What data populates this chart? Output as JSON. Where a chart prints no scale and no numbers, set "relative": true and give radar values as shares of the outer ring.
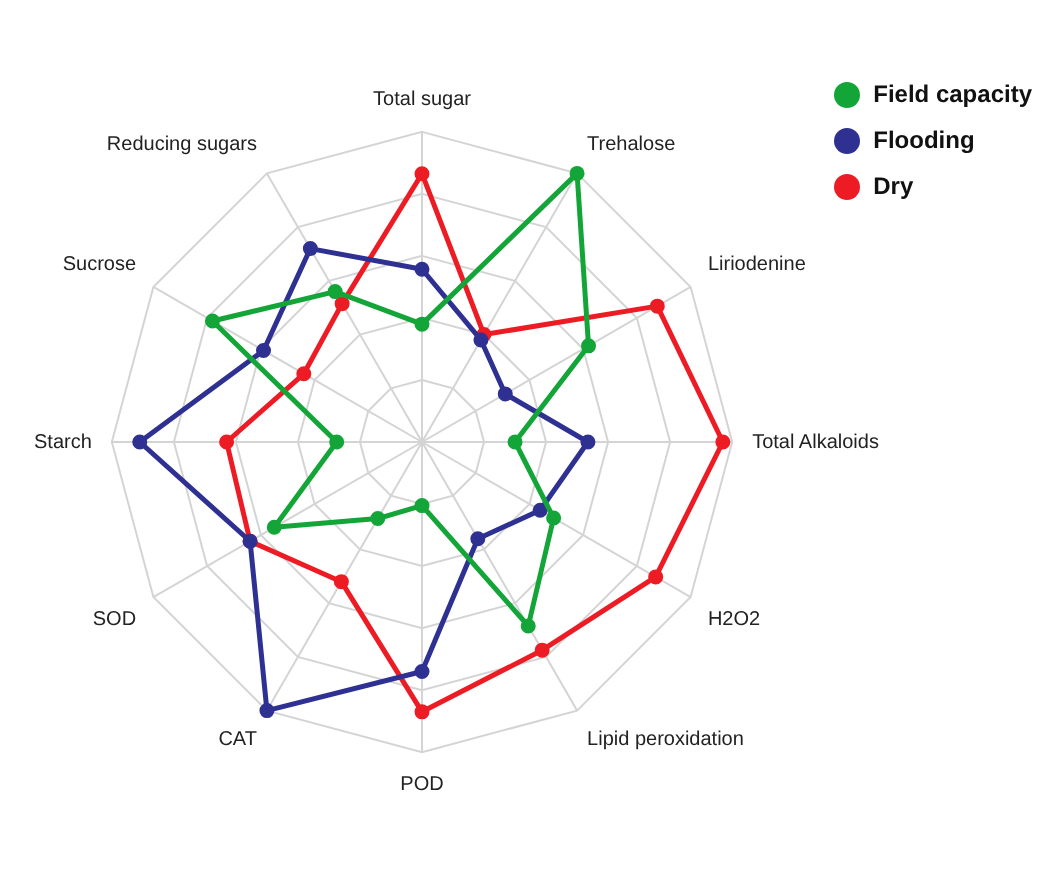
{
  "chart_data": {
    "type": "radar",
    "relative": true,
    "categories": [
      "Total sugar",
      "Trehalose",
      "Liriodenine",
      "Total Alkaloids",
      "H2O2",
      "Lipid peroxidation",
      "POD",
      "CAT",
      "SOD",
      "Starch",
      "Sucrose",
      "Reducing sugars"
    ],
    "series": [
      {
        "name": "Field capacity",
        "color": "#13a538",
        "values": [
          0.38,
          1.0,
          0.62,
          0.3,
          0.49,
          0.685,
          0.205,
          0.285,
          0.55,
          0.275,
          0.78,
          0.56
        ]
      },
      {
        "name": "Flooding",
        "color": "#2e3192",
        "values": [
          0.557,
          0.38,
          0.31,
          0.535,
          0.44,
          0.36,
          0.74,
          1.0,
          0.64,
          0.91,
          0.59,
          0.72
        ]
      },
      {
        "name": "Dry",
        "color": "#ed1c24",
        "values": [
          0.865,
          0.4,
          0.876,
          0.97,
          0.87,
          0.775,
          0.87,
          0.52,
          0.64,
          0.63,
          0.44,
          0.515
        ]
      }
    ],
    "grid": true,
    "legend": "top right",
    "marker": "circle",
    "line_style": "solid"
  }
}
